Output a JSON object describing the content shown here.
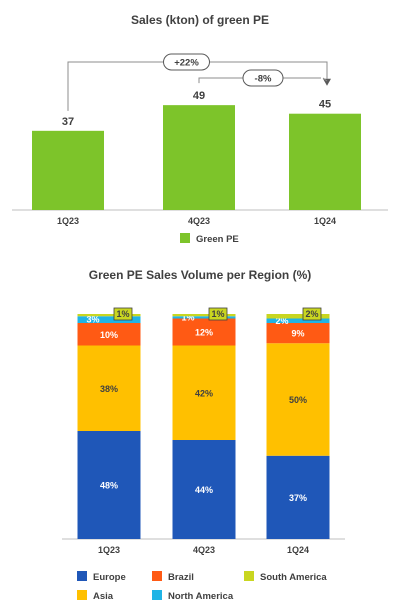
{
  "chart_data": [
    {
      "type": "bar",
      "title": "Sales (kton) of green PE",
      "categories": [
        "1Q23",
        "4Q23",
        "1Q24"
      ],
      "series": [
        {
          "name": "Green PE",
          "values": [
            37,
            49,
            45
          ],
          "color": "#7dc42a"
        }
      ],
      "annotations": [
        {
          "text": "+22%",
          "from": "1Q23",
          "to": "1Q24"
        },
        {
          "text": "-8%",
          "from": "4Q23",
          "to": "1Q24"
        }
      ],
      "ylim": [
        0,
        60
      ],
      "grid": false,
      "legend": "bottom"
    },
    {
      "type": "bar",
      "stacked": true,
      "title": "Green PE Sales Volume per Region (%)",
      "categories": [
        "1Q23",
        "4Q23",
        "1Q24"
      ],
      "series": [
        {
          "name": "Europe",
          "values": [
            48,
            44,
            37
          ],
          "color": "#1f57b8",
          "label_color": "#ffffff"
        },
        {
          "name": "Asia",
          "values": [
            38,
            42,
            50
          ],
          "color": "#ffc000",
          "label_color": "#404040"
        },
        {
          "name": "Brazil",
          "values": [
            10,
            12,
            9
          ],
          "color": "#ff5a14",
          "label_color": "#ffffff"
        },
        {
          "name": "North America",
          "values": [
            3,
            1,
            2
          ],
          "color": "#1fb4e6",
          "label_color": "#ffffff"
        },
        {
          "name": "South America",
          "values": [
            1,
            1,
            2
          ],
          "color": "#c9d620",
          "label_color": "#404040"
        }
      ],
      "value_suffix": "%",
      "ylim": [
        0,
        100
      ],
      "grid": false,
      "legend": "bottom"
    }
  ]
}
